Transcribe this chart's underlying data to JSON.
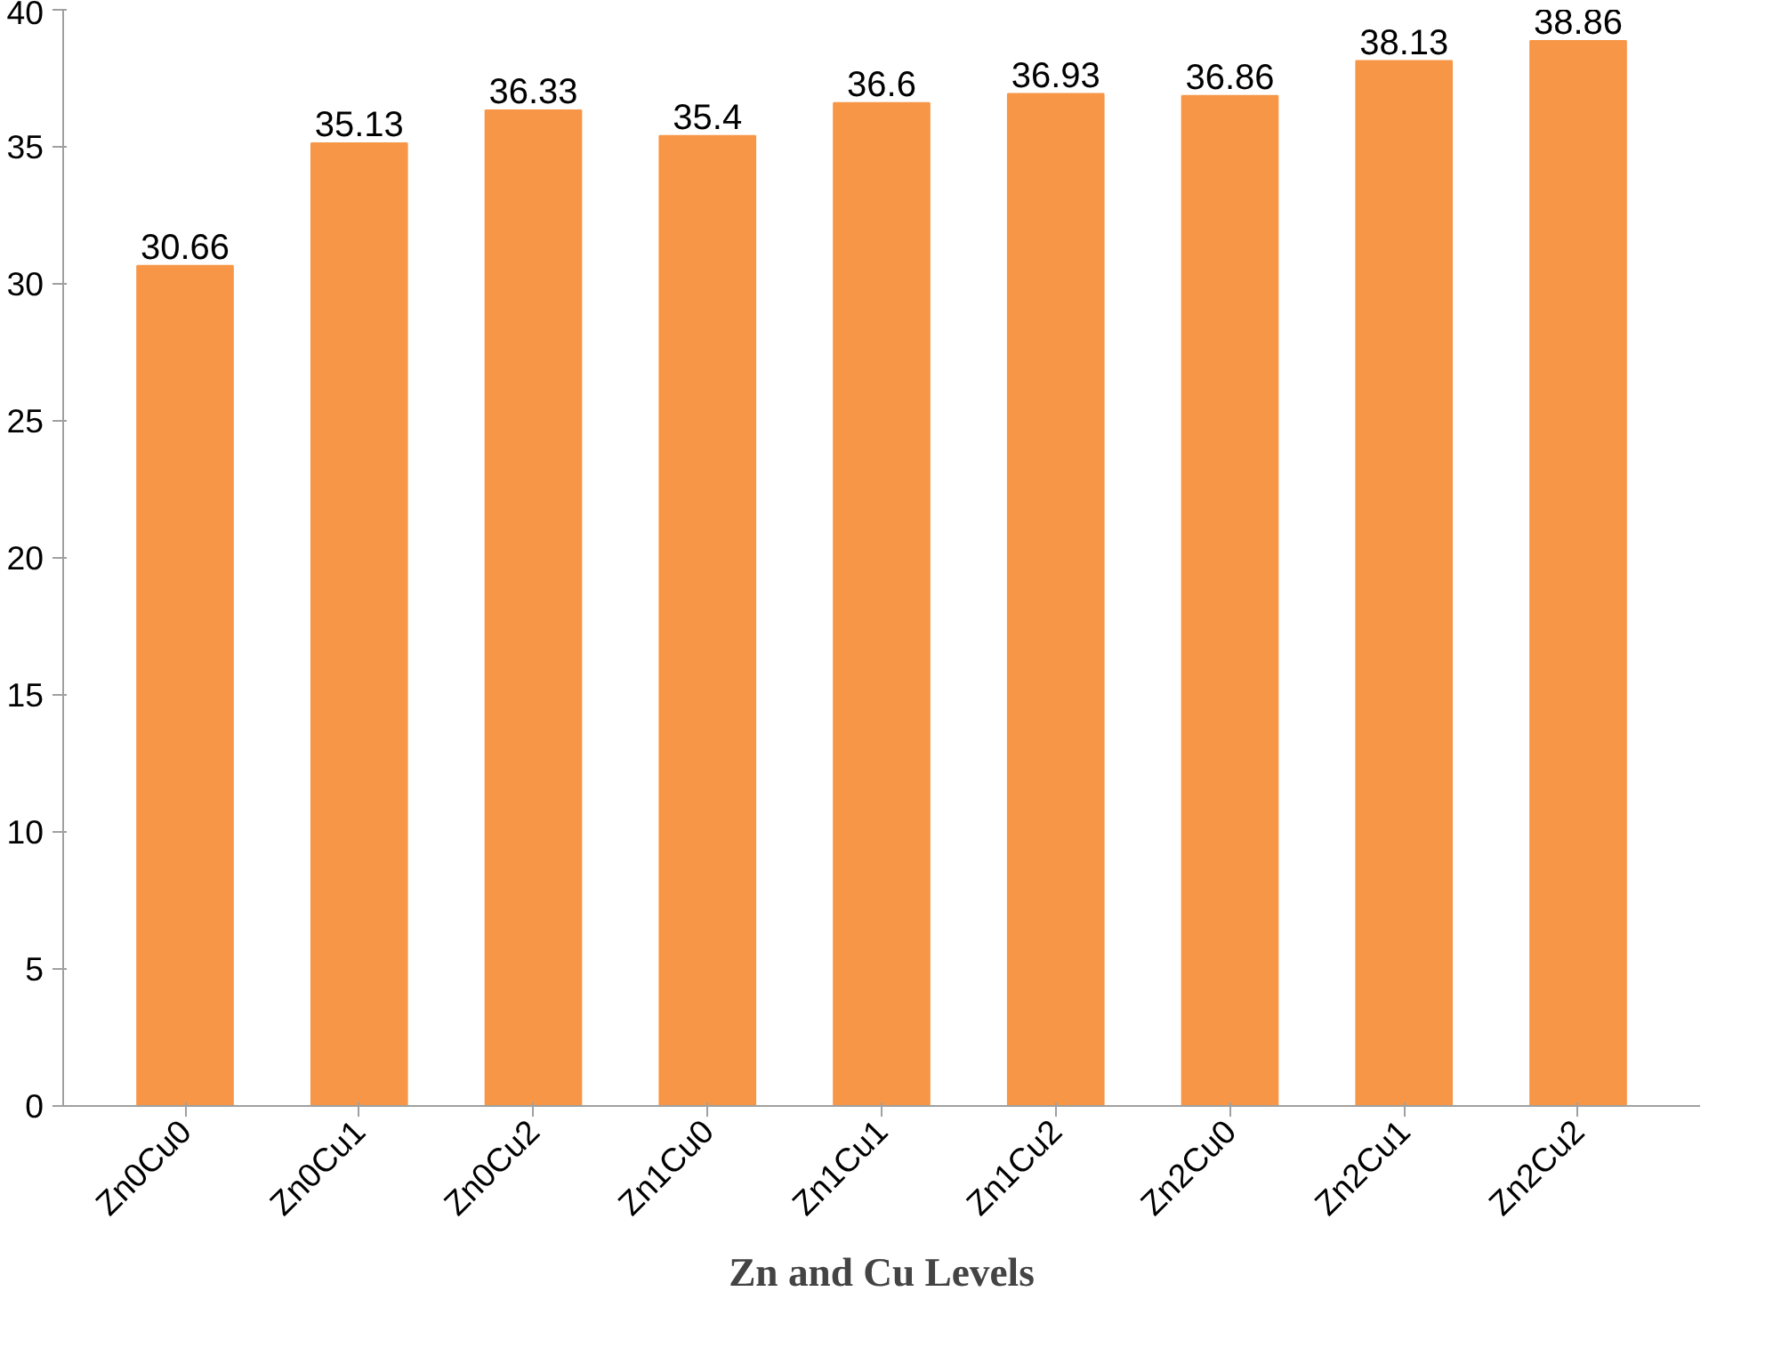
{
  "chart_data": {
    "type": "bar",
    "xlabel": "Zn and Cu Levels",
    "categories": [
      "Zn0Cu0",
      "Zn0Cu1",
      "Zn0Cu2",
      "Zn1Cu0",
      "Zn1Cu1",
      "Zn1Cu2",
      "Zn2Cu0",
      "Zn2Cu1",
      "Zn2Cu2"
    ],
    "values": [
      30.66,
      35.13,
      36.33,
      35.4,
      36.6,
      36.93,
      36.86,
      38.13,
      38.86
    ],
    "color": "#f79646",
    "ylim": [
      0,
      40
    ],
    "yticks": [
      0,
      5,
      10,
      15,
      20,
      25,
      30,
      35,
      40
    ],
    "grid": false,
    "data_labels": true
  }
}
